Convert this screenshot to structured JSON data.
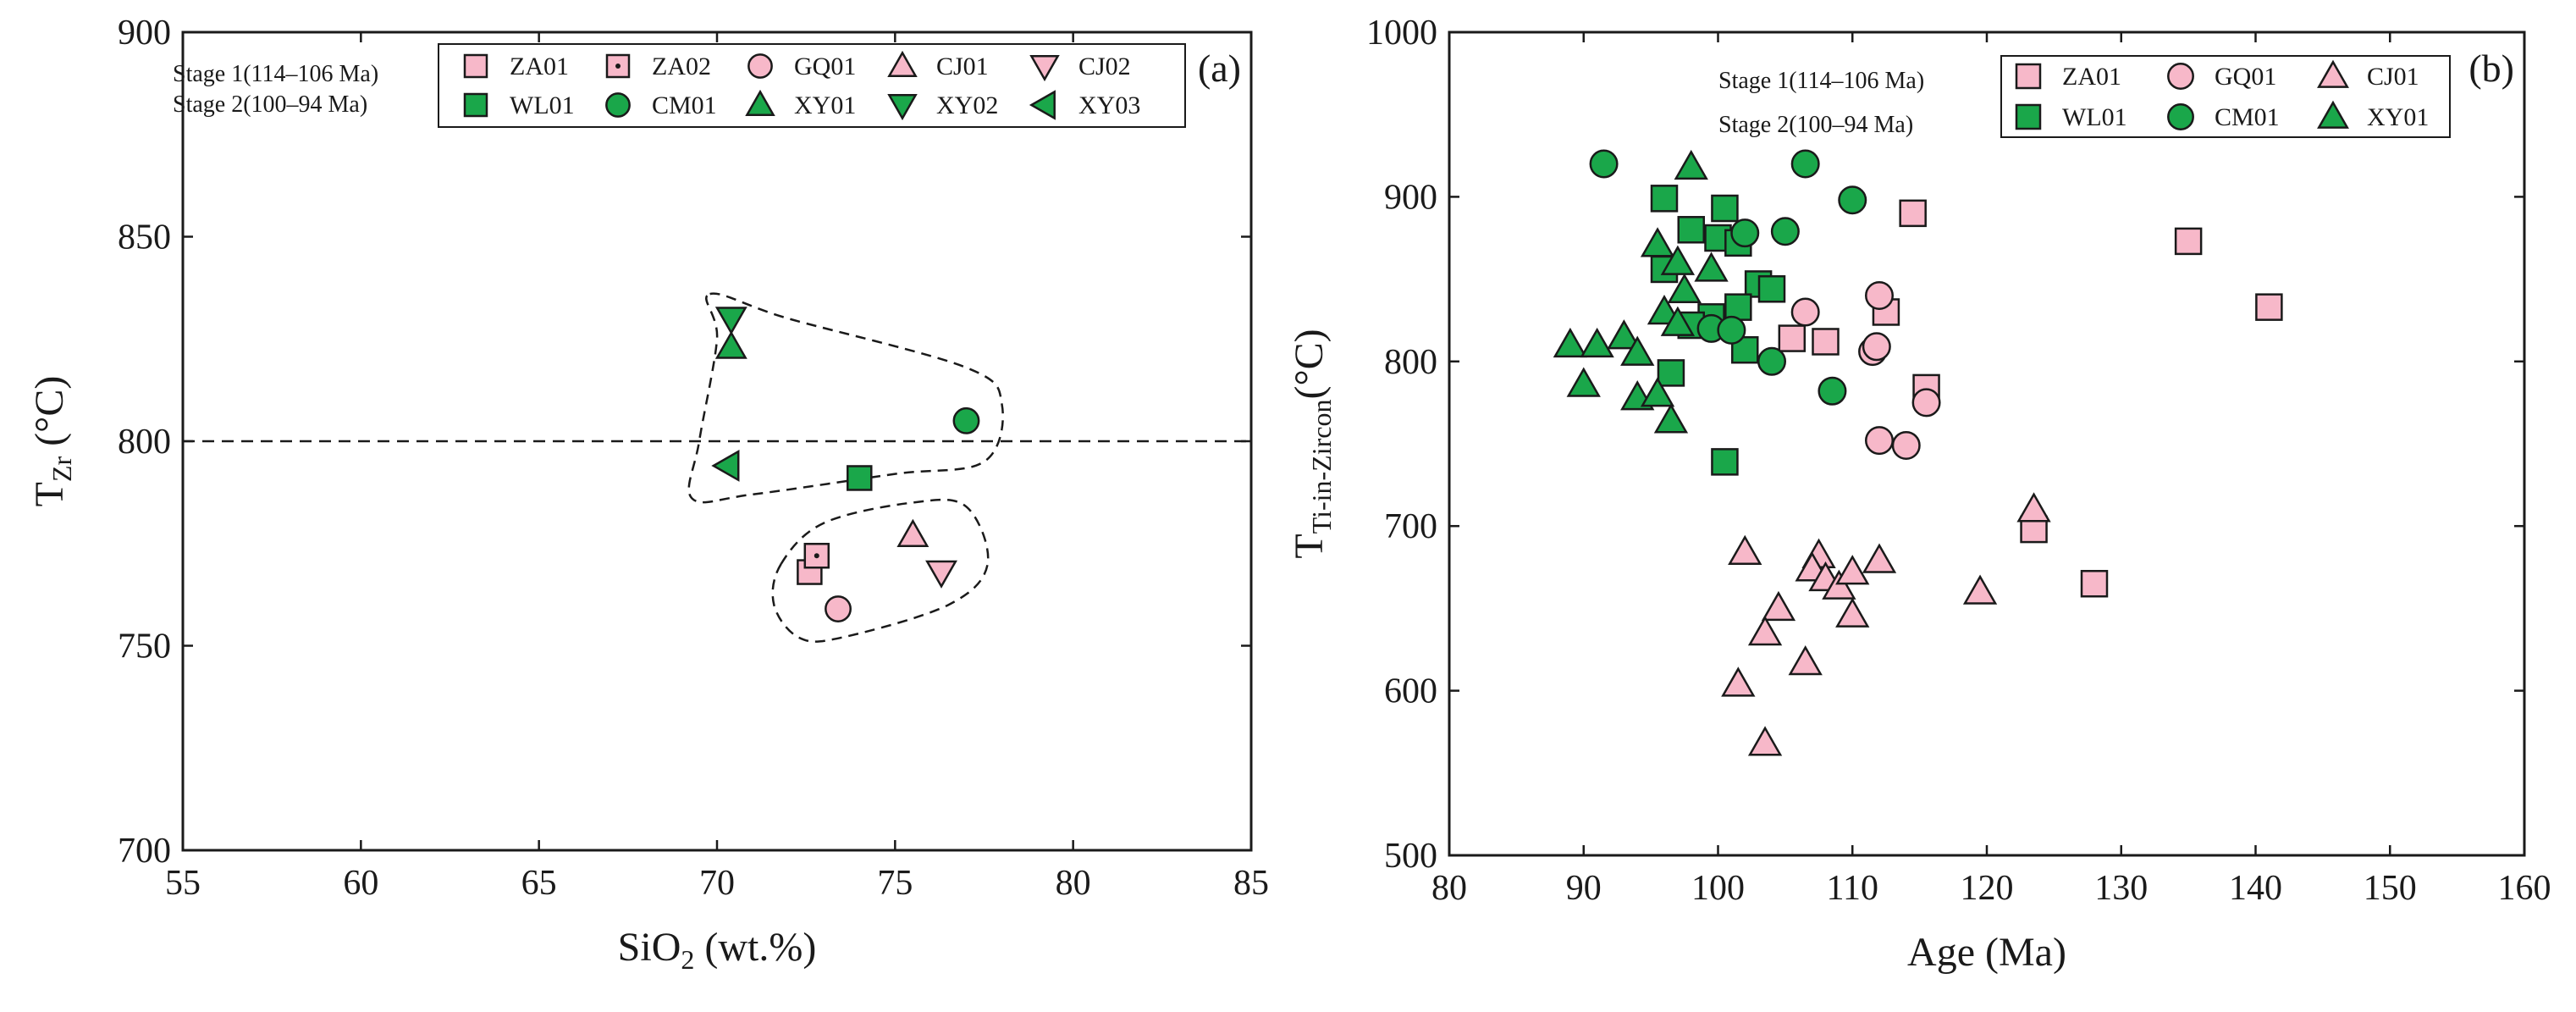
{
  "colors": {
    "stage1_fill": "#f7b8c9",
    "stage2_fill": "#1aa74a",
    "marker_stroke": "#1a1a1a"
  },
  "legend_a": {
    "stage1_label": "Stage 1(114–106 Ma)",
    "stage2_label": "Stage 2(100–94 Ma)",
    "stage1": [
      {
        "label": "ZA01",
        "marker": "square"
      },
      {
        "label": "ZA02",
        "marker": "square-dot"
      },
      {
        "label": "GQ01",
        "marker": "circle"
      },
      {
        "label": "CJ01",
        "marker": "triangle-up"
      },
      {
        "label": "CJ02",
        "marker": "triangle-down"
      }
    ],
    "stage2": [
      {
        "label": "WL01",
        "marker": "square"
      },
      {
        "label": "CM01",
        "marker": "circle"
      },
      {
        "label": "XY01",
        "marker": "triangle-up"
      },
      {
        "label": "XY02",
        "marker": "triangle-down"
      },
      {
        "label": "XY03",
        "marker": "triangle-left"
      }
    ]
  },
  "legend_b": {
    "stage1_label": "Stage 1(114–106 Ma)",
    "stage2_label": "Stage 2(100–94 Ma)",
    "stage1": [
      {
        "label": "ZA01",
        "marker": "square"
      },
      {
        "label": "GQ01",
        "marker": "circle"
      },
      {
        "label": "CJ01",
        "marker": "triangle-up"
      }
    ],
    "stage2": [
      {
        "label": "WL01",
        "marker": "square"
      },
      {
        "label": "CM01",
        "marker": "circle"
      },
      {
        "label": "XY01",
        "marker": "triangle-up"
      }
    ]
  },
  "chart_data": [
    {
      "type": "scatter",
      "panel_label": "(a)",
      "xlabel": "SiO",
      "xlabel_sub": "2",
      "xlabel_suffix": " (wt.%)",
      "ylabel": "T",
      "ylabel_sub": "Zr",
      "ylabel_suffix": " (°C)",
      "xlim": [
        55,
        85
      ],
      "ylim": [
        700,
        900
      ],
      "xticks": [
        55,
        60,
        65,
        70,
        75,
        80,
        85
      ],
      "yticks": [
        700,
        750,
        800,
        850,
        900
      ],
      "reference_line_y": 800,
      "series": [
        {
          "name": "ZA01",
          "stage": 1,
          "marker": "square",
          "points": [
            [
              72.6,
              768
            ]
          ]
        },
        {
          "name": "ZA02",
          "stage": 1,
          "marker": "square-dot",
          "points": [
            [
              72.8,
              772
            ]
          ]
        },
        {
          "name": "GQ01",
          "stage": 1,
          "marker": "circle",
          "points": [
            [
              73.4,
              759
            ]
          ]
        },
        {
          "name": "CJ01",
          "stage": 1,
          "marker": "triangle-up",
          "points": [
            [
              75.5,
              777
            ]
          ]
        },
        {
          "name": "CJ02",
          "stage": 1,
          "marker": "triangle-down",
          "points": [
            [
              76.3,
              768
            ]
          ]
        },
        {
          "name": "WL01",
          "stage": 2,
          "marker": "square",
          "points": [
            [
              74.0,
              791
            ]
          ]
        },
        {
          "name": "CM01",
          "stage": 2,
          "marker": "circle",
          "points": [
            [
              77.0,
              805
            ]
          ]
        },
        {
          "name": "XY01",
          "stage": 2,
          "marker": "triangle-up",
          "points": [
            [
              70.4,
              823
            ]
          ]
        },
        {
          "name": "XY02",
          "stage": 2,
          "marker": "triangle-down",
          "points": [
            [
              70.4,
              830
            ]
          ]
        },
        {
          "name": "XY03",
          "stage": 2,
          "marker": "triangle-left",
          "points": [
            [
              70.3,
              794
            ]
          ]
        }
      ],
      "envelopes": [
        [
          [
            69.8,
            836
          ],
          [
            72.0,
            830
          ],
          [
            77.0,
            818
          ],
          [
            78.0,
            809
          ],
          [
            77.5,
            795
          ],
          [
            75.0,
            792
          ],
          [
            71.0,
            787
          ],
          [
            69.3,
            786
          ],
          [
            69.5,
            800
          ],
          [
            70.0,
            825
          ]
        ],
        [
          [
            71.8,
            770
          ],
          [
            73.0,
            780
          ],
          [
            75.5,
            785
          ],
          [
            77.0,
            784
          ],
          [
            77.6,
            770
          ],
          [
            76.5,
            760
          ],
          [
            73.5,
            752
          ],
          [
            72.3,
            752
          ],
          [
            71.6,
            760
          ]
        ]
      ]
    },
    {
      "type": "scatter",
      "panel_label": "(b)",
      "xlabel": "Age (Ma)",
      "ylabel": "T",
      "ylabel_sub": "Ti-in-Zircon",
      "ylabel_suffix": "(°C)",
      "xlim": [
        80,
        160
      ],
      "ylim": [
        500,
        1000
      ],
      "xticks": [
        80,
        90,
        100,
        110,
        120,
        130,
        140,
        150,
        160
      ],
      "yticks": [
        500,
        600,
        700,
        800,
        900,
        1000
      ],
      "series": [
        {
          "name": "ZA01",
          "stage": 1,
          "marker": "square",
          "points": [
            [
              114.5,
              890
            ],
            [
              135,
              873
            ],
            [
              141,
              833
            ],
            [
              112.5,
              830
            ],
            [
              108,
              812
            ],
            [
              105.5,
              814
            ],
            [
              115.5,
              784
            ],
            [
              123.5,
              698
            ],
            [
              128,
              665
            ]
          ]
        },
        {
          "name": "GQ01",
          "stage": 1,
          "marker": "circle",
          "points": [
            [
              106.5,
              830
            ],
            [
              112,
              840
            ],
            [
              111.5,
              806
            ],
            [
              111.8,
              809
            ],
            [
              115.5,
              775
            ],
            [
              112,
              752
            ],
            [
              114,
              749
            ]
          ]
        },
        {
          "name": "CJ01",
          "stage": 1,
          "marker": "triangle-up",
          "points": [
            [
              123.5,
              710
            ],
            [
              119.5,
              660
            ],
            [
              102,
              684
            ],
            [
              107.5,
              682
            ],
            [
              107,
              674
            ],
            [
              108,
              668
            ],
            [
              109,
              663
            ],
            [
              110,
              672
            ],
            [
              112,
              679
            ],
            [
              104.5,
              650
            ],
            [
              110,
              646
            ],
            [
              103.5,
              635
            ],
            [
              106.5,
              617
            ],
            [
              101.5,
              604
            ],
            [
              103.5,
              568
            ]
          ]
        },
        {
          "name": "WL01",
          "stage": 2,
          "marker": "square",
          "points": [
            [
              96,
              899
            ],
            [
              100.5,
              893
            ],
            [
              98,
              880
            ],
            [
              100,
              875
            ],
            [
              101.5,
              872
            ],
            [
              103,
              847
            ],
            [
              104,
              844
            ],
            [
              96,
              856
            ],
            [
              99.5,
              827
            ],
            [
              101.5,
              833
            ],
            [
              98,
              822
            ],
            [
              102,
              807
            ],
            [
              96.5,
              793
            ],
            [
              100.5,
              739
            ]
          ]
        },
        {
          "name": "CM01",
          "stage": 2,
          "marker": "circle",
          "points": [
            [
              91.5,
              920
            ],
            [
              106.5,
              920
            ],
            [
              110,
              898
            ],
            [
              102,
              878
            ],
            [
              105,
              879
            ],
            [
              99.5,
              820
            ],
            [
              101,
              819
            ],
            [
              104,
              800
            ],
            [
              108.5,
              782
            ]
          ]
        },
        {
          "name": "XY01",
          "stage": 2,
          "marker": "triangle-up",
          "points": [
            [
              98,
              918
            ],
            [
              95.5,
              871
            ],
            [
              97,
              860
            ],
            [
              99.5,
              856
            ],
            [
              97.5,
              843
            ],
            [
              96,
              830
            ],
            [
              97,
              823
            ],
            [
              89,
              810
            ],
            [
              91,
              810
            ],
            [
              93,
              815
            ],
            [
              94,
              805
            ],
            [
              90,
              786
            ],
            [
              94,
              778
            ],
            [
              95.5,
              780
            ],
            [
              96.5,
              764
            ]
          ]
        }
      ]
    }
  ]
}
